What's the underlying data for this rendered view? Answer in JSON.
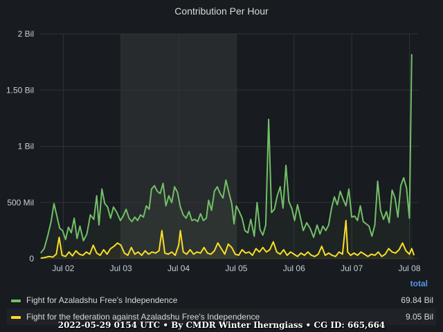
{
  "panel": {
    "title": "Contribution Per Hour",
    "footer": "2022-05-29 0154 UTC • By CMDR Winter Iherngiass • CG ID: 665,664"
  },
  "legend": {
    "header": "total",
    "items": [
      {
        "label": "Fight for Azaladshu Free's Independence",
        "value": "69.84 Bil",
        "color": "#73bf69"
      },
      {
        "label": "Fight for the federation against Azaladshu Free's Independence",
        "value": "9.05 Bil",
        "color": "#fade2a"
      }
    ]
  },
  "chart_data": {
    "type": "line",
    "title": "Contribution Per Hour",
    "xlabel": "",
    "ylabel": "",
    "x_unit": "days (Jul 2022)",
    "xlim": [
      1.6,
      8.15
    ],
    "ylim": [
      0,
      2000000000
    ],
    "y_ticks": [
      {
        "value": 0,
        "label": "0"
      },
      {
        "value": 500000000,
        "label": "500 Mil"
      },
      {
        "value": 1000000000,
        "label": "1 Bil"
      },
      {
        "value": 1500000000,
        "label": "1.50 Bil"
      },
      {
        "value": 2000000000,
        "label": "2 Bil"
      }
    ],
    "x_ticks": [
      {
        "value": 2,
        "label": "Jul 02"
      },
      {
        "value": 3,
        "label": "Jul 03"
      },
      {
        "value": 4,
        "label": "Jul 04"
      },
      {
        "value": 5,
        "label": "Jul 05"
      },
      {
        "value": 6,
        "label": "Jul 06"
      },
      {
        "value": 7,
        "label": "Jul 07"
      },
      {
        "value": 8,
        "label": "Jul 08"
      }
    ],
    "shaded_region": [
      3.0,
      5.0
    ],
    "grid": true,
    "legend_position": "bottom",
    "series": [
      {
        "name": "Fight for Azaladshu Free's Independence",
        "color": "#73bf69",
        "points": [
          [
            1.61,
            50000000
          ],
          [
            1.67,
            90000000
          ],
          [
            1.73,
            200000000
          ],
          [
            1.79,
            330000000
          ],
          [
            1.84,
            490000000
          ],
          [
            1.89,
            380000000
          ],
          [
            1.94,
            270000000
          ],
          [
            1.99,
            250000000
          ],
          [
            2.04,
            170000000
          ],
          [
            2.09,
            280000000
          ],
          [
            2.14,
            230000000
          ],
          [
            2.19,
            360000000
          ],
          [
            2.24,
            180000000
          ],
          [
            2.29,
            290000000
          ],
          [
            2.35,
            160000000
          ],
          [
            2.41,
            220000000
          ],
          [
            2.47,
            390000000
          ],
          [
            2.53,
            350000000
          ],
          [
            2.58,
            560000000
          ],
          [
            2.62,
            300000000
          ],
          [
            2.67,
            620000000
          ],
          [
            2.72,
            490000000
          ],
          [
            2.77,
            460000000
          ],
          [
            2.82,
            360000000
          ],
          [
            2.87,
            460000000
          ],
          [
            2.93,
            410000000
          ],
          [
            2.99,
            340000000
          ],
          [
            3.04,
            380000000
          ],
          [
            3.09,
            440000000
          ],
          [
            3.14,
            360000000
          ],
          [
            3.19,
            330000000
          ],
          [
            3.24,
            370000000
          ],
          [
            3.29,
            340000000
          ],
          [
            3.34,
            390000000
          ],
          [
            3.39,
            370000000
          ],
          [
            3.44,
            470000000
          ],
          [
            3.49,
            440000000
          ],
          [
            3.53,
            620000000
          ],
          [
            3.58,
            650000000
          ],
          [
            3.63,
            600000000
          ],
          [
            3.68,
            580000000
          ],
          [
            3.73,
            670000000
          ],
          [
            3.78,
            470000000
          ],
          [
            3.83,
            560000000
          ],
          [
            3.88,
            500000000
          ],
          [
            3.93,
            640000000
          ],
          [
            3.98,
            590000000
          ],
          [
            4.03,
            460000000
          ],
          [
            4.08,
            390000000
          ],
          [
            4.13,
            360000000
          ],
          [
            4.18,
            420000000
          ],
          [
            4.23,
            340000000
          ],
          [
            4.28,
            350000000
          ],
          [
            4.33,
            330000000
          ],
          [
            4.38,
            400000000
          ],
          [
            4.43,
            340000000
          ],
          [
            4.48,
            360000000
          ],
          [
            4.52,
            520000000
          ],
          [
            4.57,
            430000000
          ],
          [
            4.62,
            600000000
          ],
          [
            4.67,
            640000000
          ],
          [
            4.72,
            580000000
          ],
          [
            4.77,
            540000000
          ],
          [
            4.82,
            700000000
          ],
          [
            4.87,
            590000000
          ],
          [
            4.92,
            490000000
          ],
          [
            4.96,
            310000000
          ],
          [
            5.0,
            470000000
          ],
          [
            5.05,
            420000000
          ],
          [
            5.1,
            360000000
          ],
          [
            5.15,
            250000000
          ],
          [
            5.2,
            230000000
          ],
          [
            5.25,
            350000000
          ],
          [
            5.31,
            200000000
          ],
          [
            5.36,
            500000000
          ],
          [
            5.41,
            260000000
          ],
          [
            5.46,
            210000000
          ],
          [
            5.51,
            300000000
          ],
          [
            5.56,
            1240000000
          ],
          [
            5.61,
            410000000
          ],
          [
            5.66,
            440000000
          ],
          [
            5.71,
            560000000
          ],
          [
            5.76,
            640000000
          ],
          [
            5.81,
            450000000
          ],
          [
            5.86,
            830000000
          ],
          [
            5.91,
            510000000
          ],
          [
            5.96,
            450000000
          ],
          [
            6.01,
            340000000
          ],
          [
            6.06,
            480000000
          ],
          [
            6.11,
            370000000
          ],
          [
            6.16,
            250000000
          ],
          [
            6.22,
            320000000
          ],
          [
            6.28,
            270000000
          ],
          [
            6.34,
            190000000
          ],
          [
            6.4,
            300000000
          ],
          [
            6.45,
            220000000
          ],
          [
            6.5,
            290000000
          ],
          [
            6.55,
            250000000
          ],
          [
            6.6,
            300000000
          ],
          [
            6.65,
            450000000
          ],
          [
            6.7,
            550000000
          ],
          [
            6.75,
            480000000
          ],
          [
            6.8,
            600000000
          ],
          [
            6.85,
            530000000
          ],
          [
            6.9,
            470000000
          ],
          [
            6.95,
            620000000
          ],
          [
            7.0,
            370000000
          ],
          [
            7.05,
            380000000
          ],
          [
            7.1,
            340000000
          ],
          [
            7.15,
            470000000
          ],
          [
            7.2,
            330000000
          ],
          [
            7.25,
            310000000
          ],
          [
            7.3,
            290000000
          ],
          [
            7.35,
            200000000
          ],
          [
            7.4,
            300000000
          ],
          [
            7.45,
            690000000
          ],
          [
            7.5,
            430000000
          ],
          [
            7.55,
            350000000
          ],
          [
            7.6,
            420000000
          ],
          [
            7.65,
            320000000
          ],
          [
            7.7,
            610000000
          ],
          [
            7.75,
            540000000
          ],
          [
            7.8,
            370000000
          ],
          [
            7.85,
            650000000
          ],
          [
            7.9,
            720000000
          ],
          [
            7.95,
            630000000
          ],
          [
            8.0,
            360000000
          ],
          [
            8.04,
            1820000000
          ]
        ]
      },
      {
        "name": "Fight for the federation against Azaladshu Free's Independence",
        "color": "#fade2a",
        "points": [
          [
            1.61,
            5000000
          ],
          [
            1.68,
            10000000
          ],
          [
            1.75,
            20000000
          ],
          [
            1.82,
            15000000
          ],
          [
            1.88,
            40000000
          ],
          [
            1.93,
            190000000
          ],
          [
            1.98,
            30000000
          ],
          [
            2.04,
            20000000
          ],
          [
            2.1,
            60000000
          ],
          [
            2.16,
            25000000
          ],
          [
            2.22,
            70000000
          ],
          [
            2.28,
            40000000
          ],
          [
            2.34,
            30000000
          ],
          [
            2.4,
            60000000
          ],
          [
            2.46,
            40000000
          ],
          [
            2.52,
            120000000
          ],
          [
            2.58,
            50000000
          ],
          [
            2.64,
            30000000
          ],
          [
            2.7,
            80000000
          ],
          [
            2.76,
            40000000
          ],
          [
            2.82,
            90000000
          ],
          [
            2.88,
            110000000
          ],
          [
            2.94,
            140000000
          ],
          [
            3.0,
            120000000
          ],
          [
            3.06,
            50000000
          ],
          [
            3.12,
            30000000
          ],
          [
            3.18,
            100000000
          ],
          [
            3.24,
            40000000
          ],
          [
            3.3,
            60000000
          ],
          [
            3.36,
            30000000
          ],
          [
            3.42,
            70000000
          ],
          [
            3.48,
            40000000
          ],
          [
            3.54,
            60000000
          ],
          [
            3.6,
            50000000
          ],
          [
            3.66,
            70000000
          ],
          [
            3.71,
            250000000
          ],
          [
            3.76,
            50000000
          ],
          [
            3.82,
            40000000
          ],
          [
            3.88,
            60000000
          ],
          [
            3.94,
            30000000
          ],
          [
            4.0,
            120000000
          ],
          [
            4.03,
            250000000
          ],
          [
            4.08,
            60000000
          ],
          [
            4.14,
            40000000
          ],
          [
            4.2,
            80000000
          ],
          [
            4.26,
            40000000
          ],
          [
            4.32,
            60000000
          ],
          [
            4.38,
            50000000
          ],
          [
            4.44,
            100000000
          ],
          [
            4.5,
            50000000
          ],
          [
            4.56,
            40000000
          ],
          [
            4.62,
            70000000
          ],
          [
            4.68,
            140000000
          ],
          [
            4.74,
            90000000
          ],
          [
            4.8,
            40000000
          ],
          [
            4.86,
            130000000
          ],
          [
            4.92,
            100000000
          ],
          [
            4.98,
            40000000
          ],
          [
            5.04,
            30000000
          ],
          [
            5.1,
            80000000
          ],
          [
            5.16,
            50000000
          ],
          [
            5.22,
            60000000
          ],
          [
            5.28,
            30000000
          ],
          [
            5.34,
            90000000
          ],
          [
            5.4,
            60000000
          ],
          [
            5.46,
            100000000
          ],
          [
            5.52,
            60000000
          ],
          [
            5.58,
            80000000
          ],
          [
            5.64,
            150000000
          ],
          [
            5.7,
            60000000
          ],
          [
            5.76,
            40000000
          ],
          [
            5.82,
            80000000
          ],
          [
            5.88,
            30000000
          ],
          [
            5.94,
            60000000
          ],
          [
            6.0,
            40000000
          ],
          [
            6.06,
            20000000
          ],
          [
            6.12,
            50000000
          ],
          [
            6.18,
            30000000
          ],
          [
            6.24,
            60000000
          ],
          [
            6.3,
            30000000
          ],
          [
            6.36,
            20000000
          ],
          [
            6.42,
            40000000
          ],
          [
            6.48,
            110000000
          ],
          [
            6.54,
            30000000
          ],
          [
            6.6,
            50000000
          ],
          [
            6.66,
            30000000
          ],
          [
            6.72,
            20000000
          ],
          [
            6.78,
            60000000
          ],
          [
            6.84,
            40000000
          ],
          [
            6.9,
            340000000
          ],
          [
            6.93,
            60000000
          ],
          [
            6.98,
            30000000
          ],
          [
            7.04,
            50000000
          ],
          [
            7.1,
            30000000
          ],
          [
            7.16,
            60000000
          ],
          [
            7.22,
            40000000
          ],
          [
            7.28,
            20000000
          ],
          [
            7.34,
            40000000
          ],
          [
            7.4,
            30000000
          ],
          [
            7.46,
            60000000
          ],
          [
            7.52,
            20000000
          ],
          [
            7.58,
            40000000
          ],
          [
            7.64,
            90000000
          ],
          [
            7.7,
            60000000
          ],
          [
            7.76,
            50000000
          ],
          [
            7.82,
            80000000
          ],
          [
            7.88,
            140000000
          ],
          [
            7.94,
            70000000
          ],
          [
            8.0,
            40000000
          ],
          [
            8.04,
            90000000
          ],
          [
            8.08,
            30000000
          ]
        ]
      }
    ]
  }
}
